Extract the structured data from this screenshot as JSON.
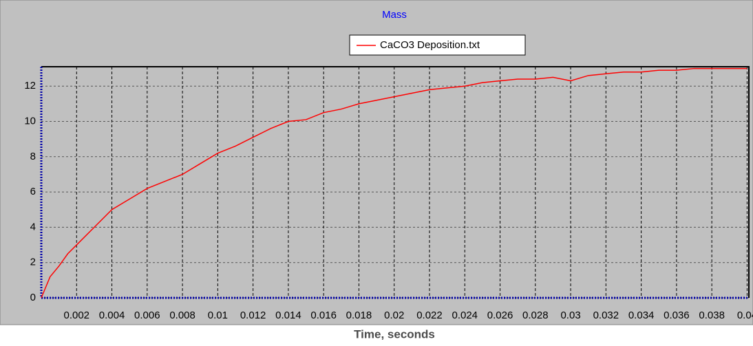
{
  "chart_data": {
    "type": "line",
    "title": "Mass",
    "x_label": "Time, seconds",
    "x": [
      0,
      0.0005,
      0.001,
      0.0015,
      0.002,
      0.003,
      0.004,
      0.005,
      0.006,
      0.007,
      0.008,
      0.009,
      0.01,
      0.011,
      0.012,
      0.013,
      0.014,
      0.015,
      0.016,
      0.017,
      0.018,
      0.019,
      0.02,
      0.021,
      0.022,
      0.023,
      0.024,
      0.025,
      0.026,
      0.027,
      0.028,
      0.029,
      0.03,
      0.031,
      0.032,
      0.033,
      0.034,
      0.035,
      0.036,
      0.037,
      0.038,
      0.039,
      0.04
    ],
    "series": [
      {
        "name": "CaCO3 Deposition.txt",
        "color": "#ff0000",
        "values": [
          0,
          1.2,
          1.8,
          2.5,
          3.0,
          4.0,
          5.0,
          5.6,
          6.2,
          6.6,
          7.0,
          7.6,
          8.2,
          8.6,
          9.1,
          9.6,
          10.0,
          10.1,
          10.5,
          10.7,
          11.0,
          11.2,
          11.4,
          11.6,
          11.8,
          11.9,
          12.0,
          12.2,
          12.3,
          12.4,
          12.4,
          12.5,
          12.3,
          12.6,
          12.7,
          12.8,
          12.8,
          12.9,
          12.9,
          13.0,
          13.0,
          13.0,
          13.0
        ]
      }
    ],
    "xlim": [
      0,
      0.0401
    ],
    "xticks": [
      0.002,
      0.004,
      0.006,
      0.008,
      0.01,
      0.012,
      0.014,
      0.016,
      0.018,
      0.02,
      0.022,
      0.024,
      0.026,
      0.028,
      0.03,
      0.032,
      0.034,
      0.036,
      0.038,
      0.04
    ],
    "ylim": [
      0,
      13.1
    ],
    "yticks": [
      0,
      2,
      4,
      6,
      8,
      10,
      12
    ],
    "grid": true
  }
}
